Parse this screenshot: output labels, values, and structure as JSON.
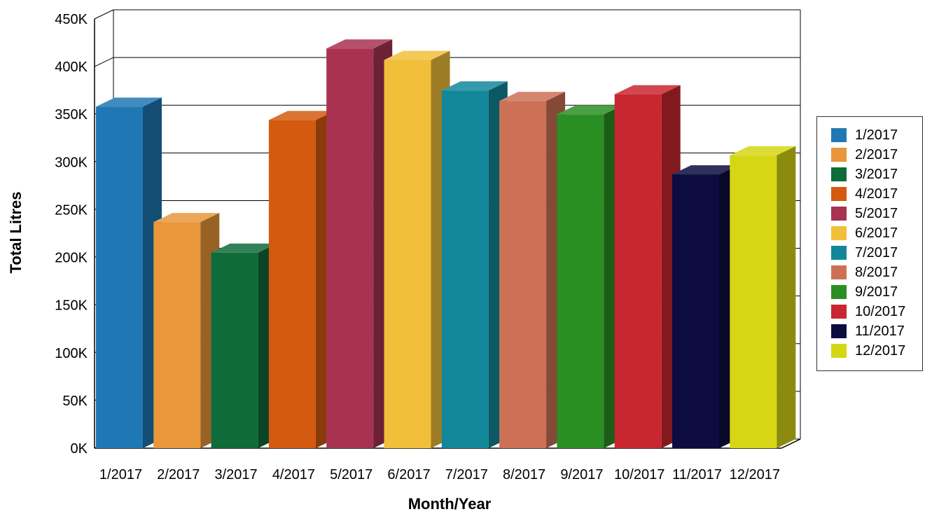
{
  "chart_data": {
    "type": "bar",
    "categories": [
      "1/2017",
      "2/2017",
      "3/2017",
      "4/2017",
      "5/2017",
      "6/2017",
      "7/2017",
      "8/2017",
      "9/2017",
      "10/2017",
      "11/2017",
      "12/2017"
    ],
    "values": [
      358000,
      237000,
      205000,
      344000,
      419000,
      407000,
      375000,
      364000,
      350000,
      371000,
      287000,
      307000
    ],
    "xlabel": "Month/Year",
    "ylabel": "Total Litres",
    "ylim": [
      0,
      450000
    ],
    "yticks": [
      "0K",
      "50K",
      "100K",
      "150K",
      "200K",
      "250K",
      "300K",
      "350K",
      "400K",
      "450K"
    ],
    "grid": true,
    "legend_position": "right",
    "colors": [
      "#1f78b4",
      "#e8973a",
      "#0f6b3a",
      "#d45a10",
      "#a83250",
      "#f2bf3a",
      "#13879a",
      "#cd7156",
      "#2a8f22",
      "#c82630",
      "#0c0c40",
      "#d6d614"
    ]
  }
}
